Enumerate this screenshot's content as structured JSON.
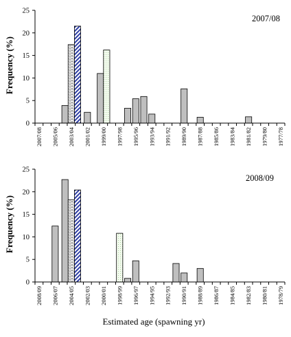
{
  "chart_data": [
    {
      "type": "bar",
      "title": "2007/08",
      "ylabel": "Frequency (%)",
      "xlabel": "",
      "ylim": [
        0,
        25
      ],
      "yticks": [
        0,
        5,
        10,
        15,
        20,
        25
      ],
      "grid": false,
      "categories": [
        "2007/08",
        "2006/07",
        "2005/06",
        "2004/05",
        "2003/04",
        "2002/03",
        "2001/02",
        "2000/01",
        "1999/00",
        "1998/99",
        "1997/98",
        "1996/97",
        "1995/96",
        "1994/95",
        "1993/94",
        "1992/93",
        "1991/92",
        "1990/91",
        "1989/90",
        "1988/89",
        "1987/88",
        "1986/87",
        "1985/86",
        "1984/85",
        "1983/84",
        "1982/83",
        "1981/82",
        "1980/81",
        "1979/80",
        "1978/79",
        "1977/78"
      ],
      "tick_labels": [
        "2007/08",
        "2005/06",
        "2003/04",
        "2001/02",
        "1999/00",
        "1997/98",
        "1995/96",
        "1993/94",
        "1991/92",
        "1989/90",
        "1987/88",
        "1985/86",
        "1983/84",
        "1981/82",
        "1979/80",
        "1977/78"
      ],
      "series": [
        {
          "style": "gray",
          "values": [
            0,
            0,
            0,
            0,
            3.9,
            0,
            2.4,
            0,
            11,
            0,
            0,
            3.3,
            5.4,
            5.9,
            2,
            0,
            0,
            0,
            7.6,
            0,
            1.3,
            0,
            0,
            0,
            0,
            0,
            1.4,
            0,
            0,
            0,
            0
          ]
        },
        {
          "style": "brick",
          "values": [
            0,
            0,
            0,
            0,
            17.4,
            0,
            0,
            0,
            0,
            0,
            0,
            0,
            0,
            0,
            0,
            0,
            0,
            0,
            0,
            0,
            0,
            0,
            0,
            0,
            0,
            0,
            0,
            0,
            0,
            0,
            0
          ]
        },
        {
          "style": "blue-hatch",
          "values": [
            0,
            0,
            0,
            0,
            21.5,
            0,
            0,
            0,
            0,
            0,
            0,
            0,
            0,
            0,
            0,
            0,
            0,
            0,
            0,
            0,
            0,
            0,
            0,
            0,
            0,
            0,
            0,
            0,
            0,
            0,
            0
          ]
        },
        {
          "style": "green-dots",
          "values": [
            0,
            0,
            0,
            0,
            0,
            0,
            0,
            0,
            16.2,
            0,
            0,
            0,
            0,
            0,
            0,
            0,
            0,
            0,
            0,
            0,
            0,
            0,
            0,
            0,
            0,
            0,
            0,
            0,
            0,
            0,
            0
          ]
        }
      ]
    },
    {
      "type": "bar",
      "title": "2008/09",
      "ylabel": "Frequency (%)",
      "xlabel": "Estimated age (spawning yr)",
      "ylim": [
        0,
        25
      ],
      "yticks": [
        0,
        5,
        10,
        15,
        20,
        25
      ],
      "grid": false,
      "categories": [
        "2008/09",
        "2007/08",
        "2006/07",
        "2005/06",
        "2004/05",
        "2003/04",
        "2002/03",
        "2001/02",
        "2000/01",
        "1999/00",
        "1998/99",
        "1997/98",
        "1996/97",
        "1995/96",
        "1994/95",
        "1993/94",
        "1992/93",
        "1991/92",
        "1990/91",
        "1989/90",
        "1988/89",
        "1987/88",
        "1986/87",
        "1985/86",
        "1984/85",
        "1983/84",
        "1982/83",
        "1981/82",
        "1980/81",
        "1979/80",
        "1978/79"
      ],
      "tick_labels": [
        "2008/09",
        "2006/07",
        "2004/05",
        "2002/03",
        "2000/01",
        "1998/99",
        "1996/97",
        "1994/95",
        "1992/93",
        "1990/91",
        "1988/89",
        "1986/87",
        "1984/85",
        "1982/83",
        "1980/81",
        "1978/79"
      ],
      "series": [
        {
          "style": "gray",
          "values": [
            0,
            0,
            12.4,
            0,
            22.7,
            0,
            0,
            0,
            0,
            0,
            0,
            0.8,
            4.7,
            0,
            0,
            0,
            0,
            4.1,
            2,
            0,
            3,
            0,
            0,
            0,
            0,
            0,
            0,
            0,
            0,
            0,
            0
          ]
        },
        {
          "style": "brick",
          "values": [
            0,
            0,
            0,
            0,
            18.2,
            0,
            0,
            0,
            0,
            0,
            0,
            0,
            0,
            0,
            0,
            0,
            0,
            0,
            0,
            0,
            0,
            0,
            0,
            0,
            0,
            0,
            0,
            0,
            0,
            0,
            0
          ]
        },
        {
          "style": "blue-hatch",
          "values": [
            0,
            0,
            0,
            0,
            20.4,
            0,
            0,
            0,
            0,
            0,
            0,
            0,
            0,
            0,
            0,
            0,
            0,
            0,
            0,
            0,
            0,
            0,
            0,
            0,
            0,
            0,
            0,
            0,
            0,
            0,
            0
          ]
        },
        {
          "style": "green-dots",
          "values": [
            0,
            0,
            0,
            0,
            0,
            0,
            0,
            0,
            0,
            0,
            10.8,
            0,
            0,
            0,
            0,
            0,
            0,
            0,
            0,
            0,
            0,
            0,
            0,
            0,
            0,
            0,
            0,
            0,
            0,
            0,
            0
          ]
        }
      ]
    }
  ]
}
